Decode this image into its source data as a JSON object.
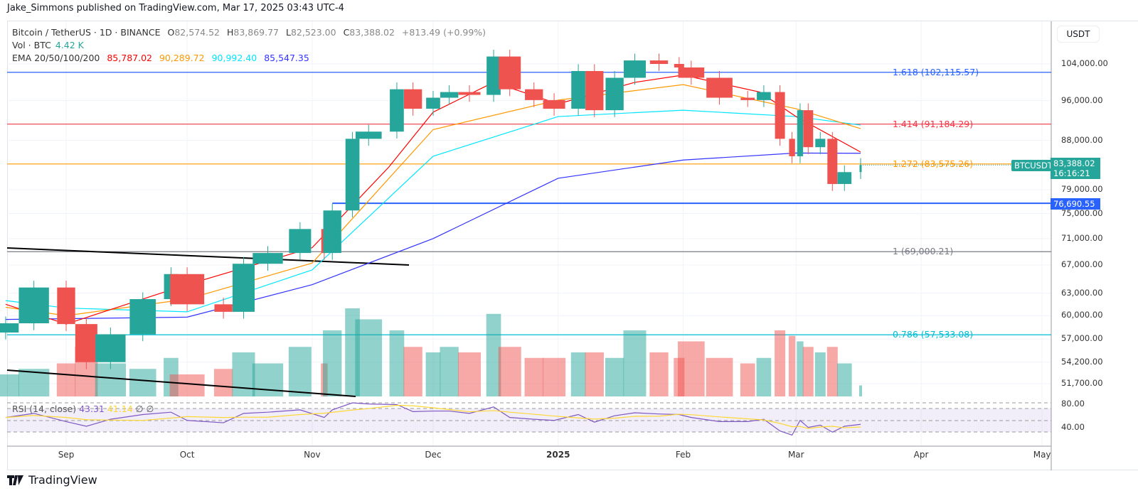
{
  "header": {
    "published": "Jake_Simmons published on TradingView.com, Mar 17, 2025 03:43 UTC-4"
  },
  "legend": {
    "symbol": "Bitcoin / TetherUS · 1D · BINANCE",
    "o_label": "O",
    "o": "82,574.52",
    "h_label": "H",
    "h": "83,869.77",
    "l_label": "L",
    "l": "82,523.00",
    "c_label": "C",
    "c": "83,388.02",
    "change": "+813.49 (+0.99%)",
    "vol_label": "Vol · BTC",
    "vol": "4.42 K",
    "ema_label": "EMA 20/50/100/200",
    "ema20": "85,787.02",
    "ema50": "90,289.72",
    "ema100": "90,992.40",
    "ema200": "85,547.35"
  },
  "rsi": {
    "label": "RSI (14, close)",
    "value": "43.31",
    "ma": "41.14",
    "na1": "∅",
    "na2": "∅",
    "ticks": [
      "80.00",
      "40.00"
    ]
  },
  "axis": {
    "unit": "USDT",
    "ticks": [
      "104,000.00",
      "96,000.00",
      "88,000.00",
      "79,000.00",
      "75,000.00",
      "71,000.00",
      "67,000.00",
      "63,000.00",
      "60,000.00",
      "57,000.00",
      "54,200.00",
      "51,700.00"
    ],
    "time_labels": [
      "Sep",
      "Oct",
      "Nov",
      "Dec",
      "2025",
      "Feb",
      "Mar",
      "Apr",
      "May"
    ]
  },
  "tags": {
    "symbol": "BTCUSDT",
    "price": "83,388.02",
    "countdown": "16:16:21",
    "line": "76,690.55"
  },
  "footer": {
    "brand": "TradingView"
  },
  "colors": {
    "up": "#26a69a",
    "down": "#ef5350",
    "ema20": "#ff0000",
    "ema50": "#ff9800",
    "ema100": "#00e5ff",
    "ema200": "#3333ff",
    "rsi": "#7e57c2",
    "rsi_ma": "#fdd835"
  },
  "chart_data": {
    "type": "candlestick",
    "scale": "log",
    "ylim": [
      50500,
      108000
    ],
    "xlim": [
      "2024-08-16",
      "2025-05-08"
    ],
    "fib_levels": [
      {
        "label": "1.618 (102,115.57)",
        "value": 102115.57,
        "color": "#2962ff"
      },
      {
        "label": "1.414 (91,184.29)",
        "value": 91184.29,
        "color": "#f23645"
      },
      {
        "label": "1.272 (83,575.26)",
        "value": 83575.26,
        "color": "#ff9800"
      },
      {
        "label": "1 (69,000.21)",
        "value": 69000.21,
        "color": "#787b86"
      },
      {
        "label": "0.786 (57,533.08)",
        "value": 57533.08,
        "color": "#00bcd4"
      }
    ],
    "support_line": {
      "value": 76690.55,
      "from": "2024-11-06"
    },
    "trendlines": [
      [
        [
          "2024-08-16",
          70000
        ],
        [
          "2024-11-24",
          67700
        ]
      ]
    ],
    "dates": [
      "2024-08-17",
      "2024-08-24",
      "2024-09-01",
      "2024-09-06",
      "2024-09-12",
      "2024-09-20",
      "2024-09-27",
      "2024-10-01",
      "2024-10-10",
      "2024-10-15",
      "2024-10-21",
      "2024-10-29",
      "2024-11-04",
      "2024-11-06",
      "2024-11-11",
      "2024-11-15",
      "2024-11-22",
      "2024-11-26",
      "2024-12-01",
      "2024-12-05",
      "2024-12-10",
      "2024-12-16",
      "2024-12-20",
      "2024-12-26",
      "2024-12-31",
      "2025-01-06",
      "2025-01-10",
      "2025-01-15",
      "2025-01-20",
      "2025-01-26",
      "2025-01-31",
      "2025-02-03",
      "2025-02-10",
      "2025-02-17",
      "2025-02-21",
      "2025-02-25",
      "2025-02-28",
      "2025-03-02",
      "2025-03-04",
      "2025-03-07",
      "2025-03-10",
      "2025-03-13",
      "2025-03-17"
    ],
    "close": [
      59000,
      63800,
      58900,
      54200,
      57600,
      62200,
      65700,
      61500,
      60500,
      67200,
      68800,
      72500,
      68800,
      75500,
      88300,
      89700,
      98400,
      94300,
      96600,
      97800,
      97200,
      105700,
      98400,
      96100,
      94300,
      102400,
      94000,
      100900,
      104800,
      104000,
      103200,
      100900,
      96600,
      96100,
      97800,
      88300,
      85000,
      94000,
      86700,
      88300,
      80000,
      82100,
      83388.02
    ],
    "volume_relative": [
      20,
      25,
      30,
      45,
      30,
      25,
      35,
      20,
      25,
      40,
      30,
      45,
      30,
      60,
      80,
      70,
      60,
      45,
      40,
      45,
      40,
      75,
      45,
      35,
      35,
      40,
      40,
      35,
      60,
      40,
      35,
      50,
      35,
      30,
      35,
      60,
      55,
      50,
      45,
      40,
      45,
      30,
      10
    ],
    "rsi": [
      55,
      62,
      48,
      40,
      52,
      60,
      64,
      50,
      46,
      62,
      64,
      68,
      55,
      68,
      80,
      78,
      77,
      65,
      66,
      66,
      62,
      73,
      55,
      52,
      50,
      60,
      47,
      58,
      63,
      61,
      60,
      55,
      48,
      48,
      52,
      32,
      25,
      50,
      38,
      42,
      30,
      40,
      43.31
    ],
    "ema": {
      "ema20": [
        [
          "2024-08-17",
          61500
        ],
        [
          "2024-09-01",
          58900
        ],
        [
          "2024-10-01",
          64200
        ],
        [
          "2024-11-01",
          69600
        ],
        [
          "2024-11-20",
          83000
        ],
        [
          "2024-12-01",
          93600
        ],
        [
          "2024-12-16",
          99900
        ],
        [
          "2025-01-01",
          95300
        ],
        [
          "2025-01-20",
          99900
        ],
        [
          "2025-02-01",
          101500
        ],
        [
          "2025-02-20",
          97800
        ],
        [
          "2025-03-01",
          92700
        ],
        [
          "2025-03-17",
          85787.02
        ]
      ],
      "ema50": [
        [
          "2024-08-17",
          61100
        ],
        [
          "2024-09-01",
          60000
        ],
        [
          "2024-10-01",
          62200
        ],
        [
          "2024-11-01",
          67300
        ],
        [
          "2024-12-01",
          90100
        ],
        [
          "2025-01-01",
          96100
        ],
        [
          "2025-02-01",
          99400
        ],
        [
          "2025-03-01",
          94300
        ],
        [
          "2025-03-17",
          90289.72
        ]
      ],
      "ema100": [
        [
          "2024-08-17",
          62000
        ],
        [
          "2024-09-01",
          61000
        ],
        [
          "2024-10-01",
          60500
        ],
        [
          "2024-11-01",
          66300
        ],
        [
          "2024-12-01",
          85000
        ],
        [
          "2025-01-01",
          92700
        ],
        [
          "2025-02-01",
          94000
        ],
        [
          "2025-03-01",
          92700
        ],
        [
          "2025-03-17",
          90992.4
        ]
      ],
      "ema200": [
        [
          "2024-08-17",
          59500
        ],
        [
          "2024-10-01",
          59800
        ],
        [
          "2024-11-01",
          64200
        ],
        [
          "2024-12-01",
          71000
        ],
        [
          "2025-01-01",
          81000
        ],
        [
          "2025-02-01",
          84300
        ],
        [
          "2025-03-01",
          85600
        ],
        [
          "2025-03-17",
          85547.35
        ]
      ]
    }
  }
}
